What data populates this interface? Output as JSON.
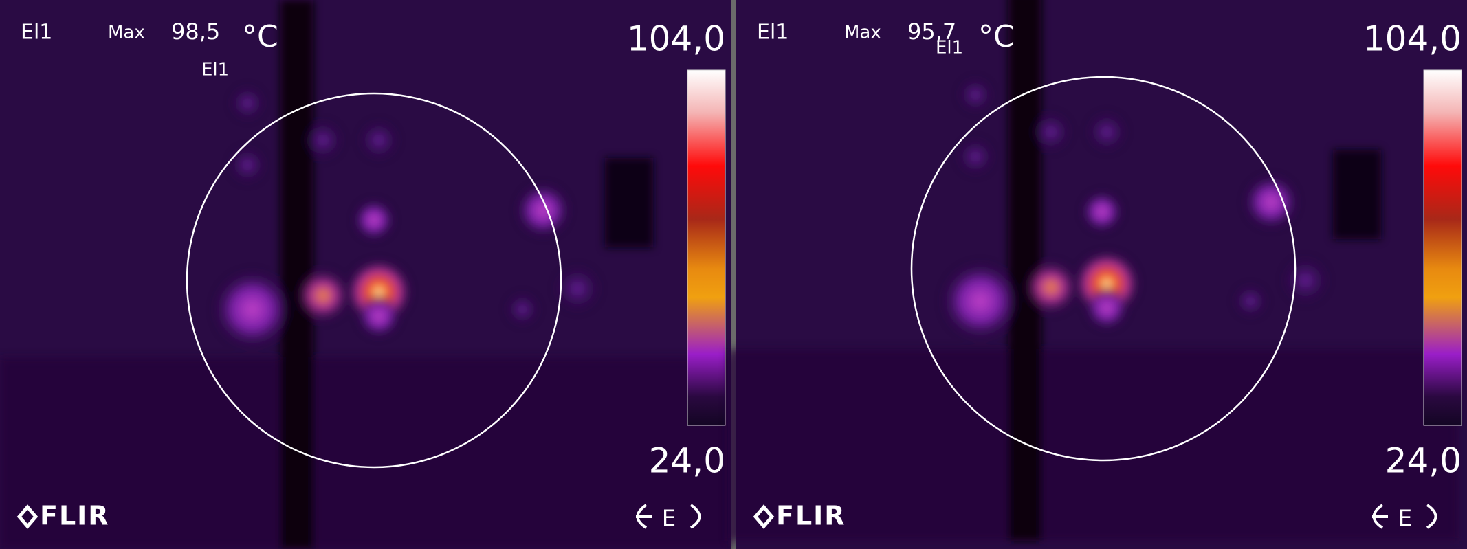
{
  "panels": [
    {
      "label": "El1",
      "max_label": "Max",
      "max_value": "98,5",
      "unit": "°C",
      "marker_label": "El1",
      "scale_max": "104,0",
      "scale_min": "24,0",
      "logo": "FLIR",
      "mode_icon": "E"
    },
    {
      "label": "El1",
      "max_label": "Max",
      "max_value": "95,7",
      "unit": "°C",
      "marker_label": "El1",
      "scale_max": "104,0",
      "scale_min": "24,0",
      "logo": "FLIR",
      "mode_icon": "E"
    }
  ]
}
